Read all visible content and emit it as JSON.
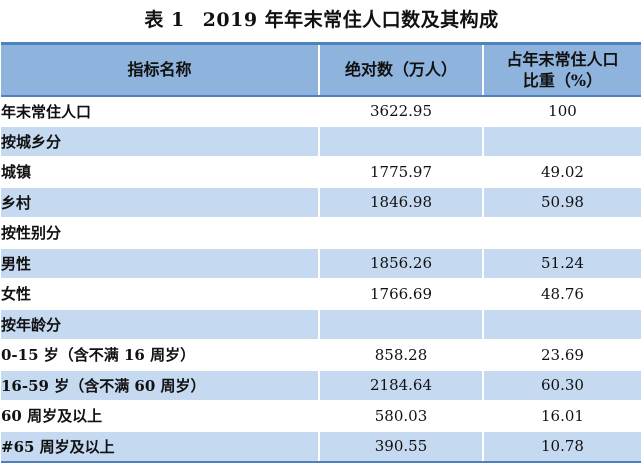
{
  "table": {
    "title_num": "表 1",
    "title_text": "2019 年年末常住人口数及其构成",
    "headers": {
      "indicator": "指标名称",
      "absolute": "绝对数（万人）",
      "share_line1": "占年末常住人口",
      "share_line2": "比重（%）"
    },
    "rows": [
      {
        "label": "年末常住人口",
        "value": "3622.95",
        "share": "100"
      },
      {
        "label": "按城乡分",
        "value": "",
        "share": ""
      },
      {
        "label": "城镇",
        "value": "1775.97",
        "share": "49.02"
      },
      {
        "label": "乡村",
        "value": "1846.98",
        "share": "50.98"
      },
      {
        "label": "按性别分",
        "value": "",
        "share": ""
      },
      {
        "label": "男性",
        "value": "1856.26",
        "share": "51.24"
      },
      {
        "label": "女性",
        "value": "1766.69",
        "share": "48.76"
      },
      {
        "label": "按年龄分",
        "value": "",
        "share": ""
      },
      {
        "label": "0-15 岁（含不满 16 周岁）",
        "value": "858.28",
        "share": "23.69"
      },
      {
        "label": "16-59 岁（含不满 60 周岁）",
        "value": "2184.64",
        "share": "60.30"
      },
      {
        "label": "60 周岁及以上",
        "value": "580.03",
        "share": "16.01"
      },
      {
        "label": "#65 周岁及以上",
        "value": "390.55",
        "share": "10.78"
      }
    ]
  },
  "colors": {
    "header_bg": "#8eb3dc",
    "row_shade": "#c5d9f1",
    "rule": "#4f81bd"
  }
}
